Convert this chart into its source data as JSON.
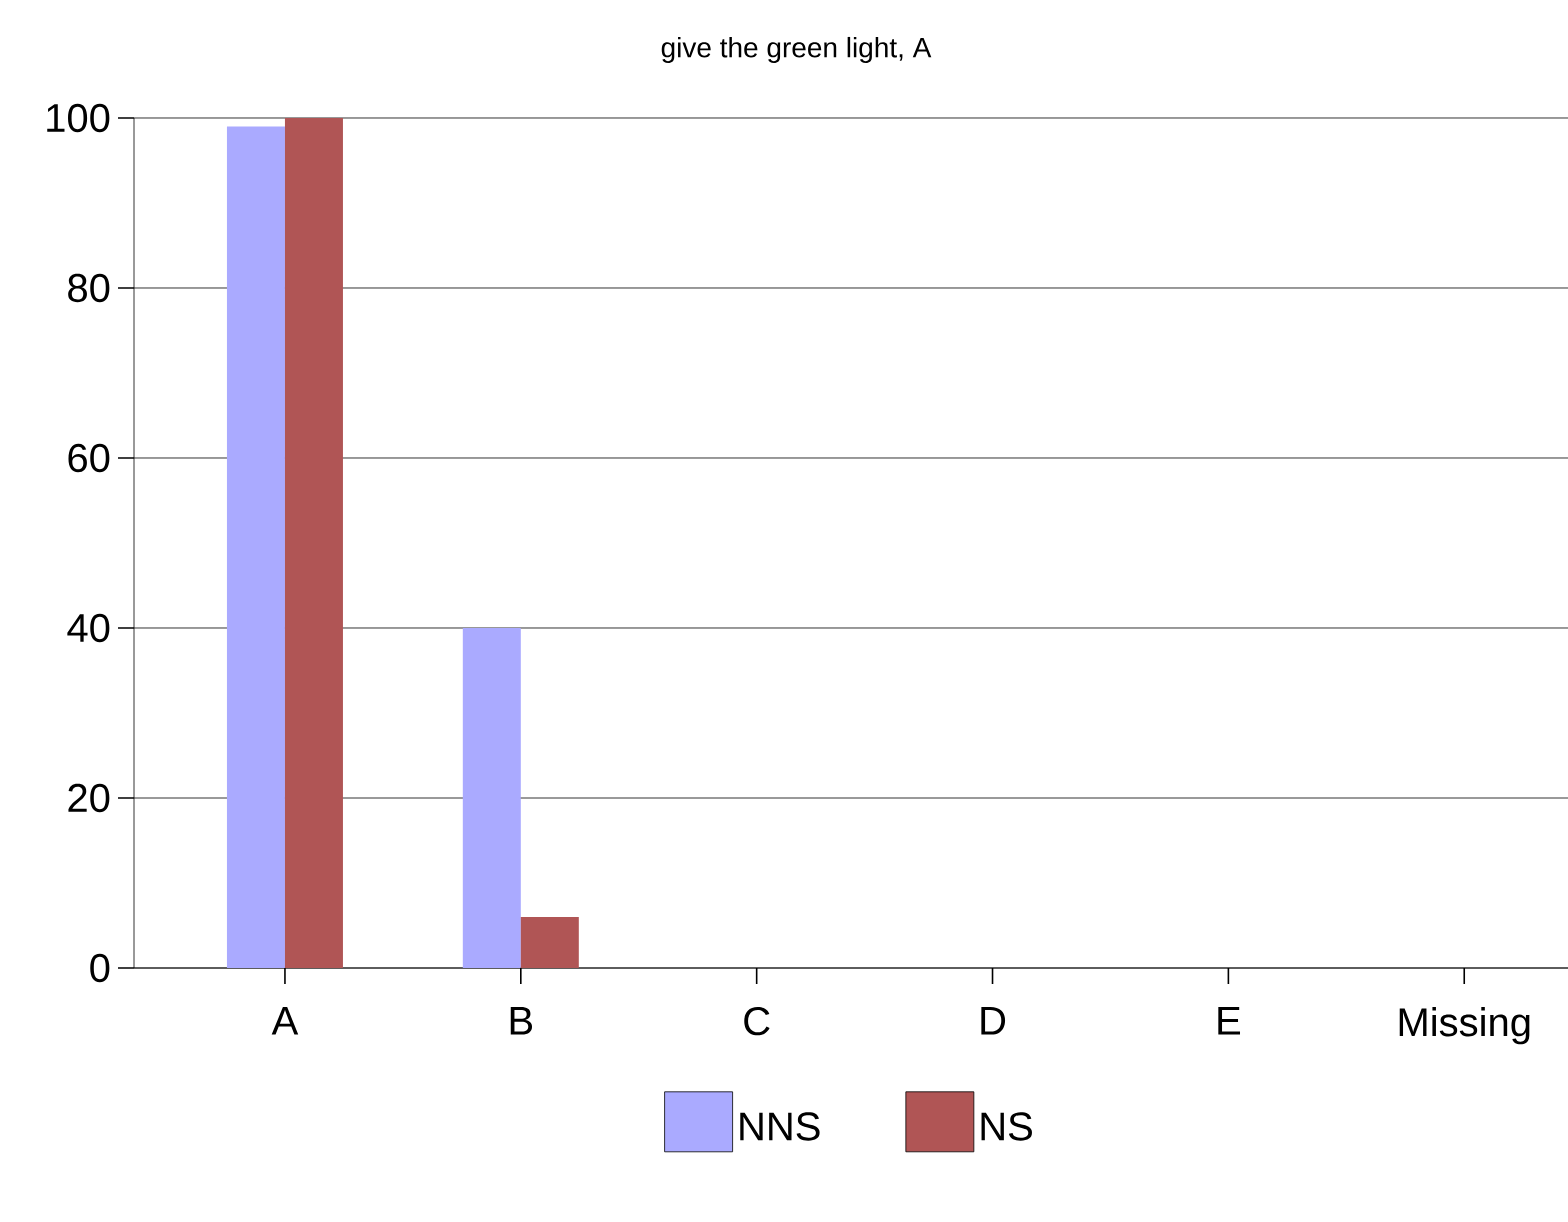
{
  "chart_data": {
    "type": "bar",
    "title": "give the green light, A",
    "categories": [
      "A",
      "B",
      "C",
      "D",
      "E",
      "Missing"
    ],
    "series": [
      {
        "name": "NNS",
        "color": "#aaaaff",
        "values": [
          99,
          40,
          0,
          0,
          0,
          0
        ]
      },
      {
        "name": "NS",
        "color": "#b05555",
        "values": [
          100,
          6,
          0,
          0,
          0,
          0
        ]
      }
    ],
    "ylim": [
      0,
      100
    ],
    "yticks": [
      0,
      20,
      40,
      60,
      80,
      100
    ],
    "grid": "y",
    "legend": "bottom"
  }
}
